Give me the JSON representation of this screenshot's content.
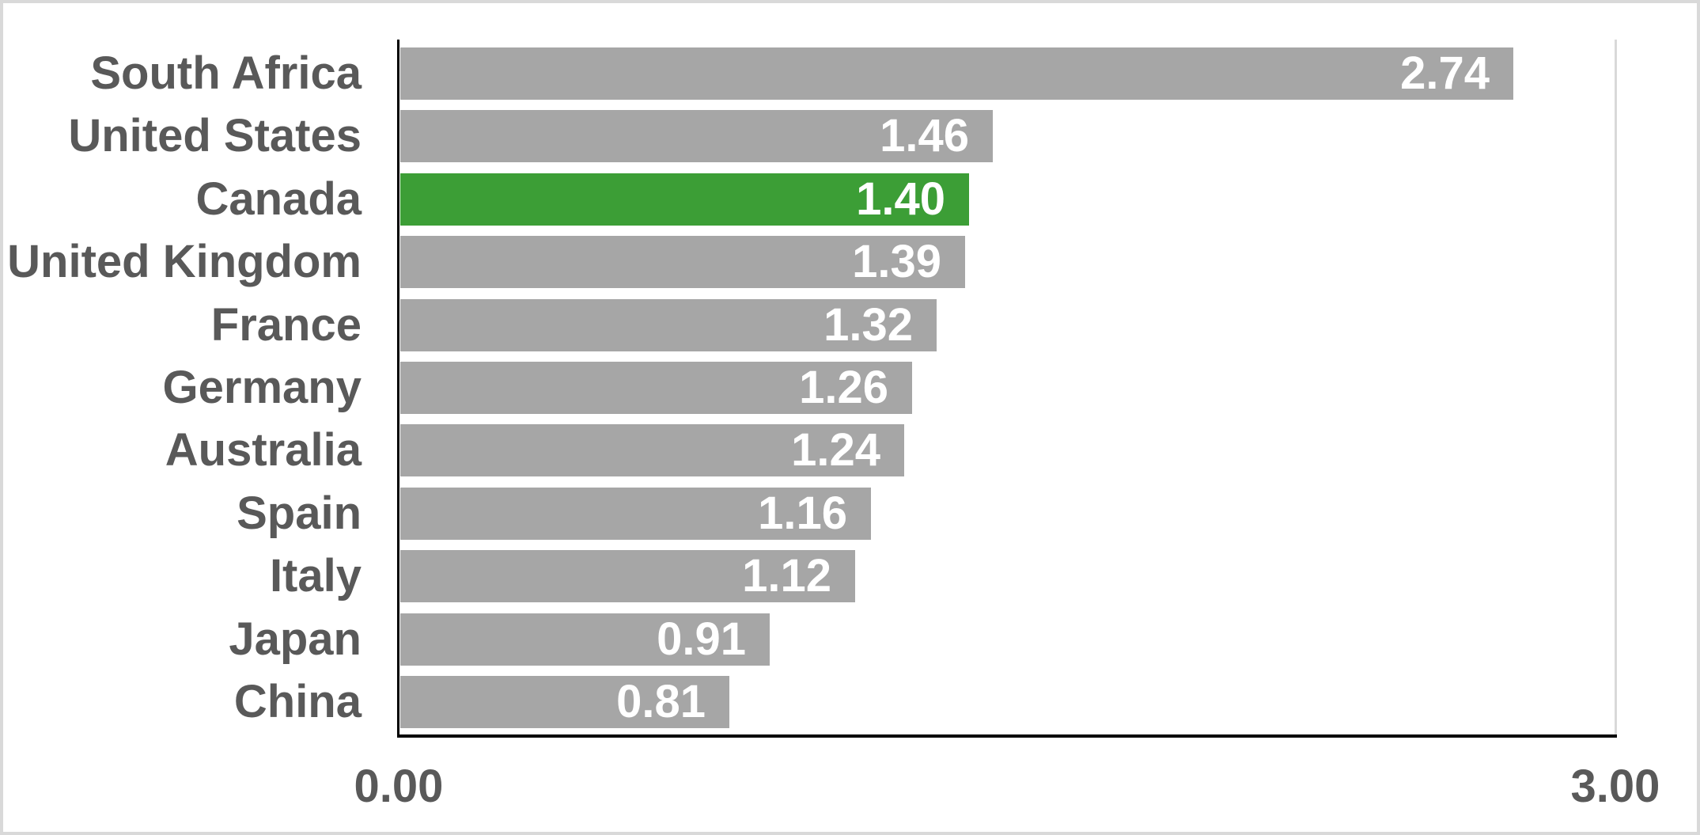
{
  "chart_data": {
    "type": "bar",
    "orientation": "horizontal",
    "title": "",
    "categories": [
      "South Africa",
      "United States",
      "Canada",
      "United Kingdom",
      "France",
      "Germany",
      "Australia",
      "Spain",
      "Italy",
      "Japan",
      "China"
    ],
    "values": [
      2.74,
      1.46,
      1.4,
      1.39,
      1.32,
      1.26,
      1.24,
      1.16,
      1.12,
      0.91,
      0.81
    ],
    "values_display": [
      "2.74",
      "1.46",
      "1.40",
      "1.39",
      "1.32",
      "1.26",
      "1.24",
      "1.16",
      "1.12",
      "0.91",
      "0.81"
    ],
    "highlighted_category": "Canada",
    "xlim": [
      0,
      3
    ],
    "x_ticks": [
      "0.00",
      "3.00"
    ],
    "legend": "none",
    "grid": "single vertical gridline at 3.00",
    "colors": {
      "bar_default": "#A6A6A6",
      "bar_highlight": "#3C9E36",
      "value_label": "#FFFFFF",
      "category_label": "#595959",
      "tick_label": "#595959",
      "axis_line": "#000000",
      "gridline": "#D9D9D9",
      "frame_border": "#D9D9D9",
      "background": "#FFFFFF"
    }
  }
}
